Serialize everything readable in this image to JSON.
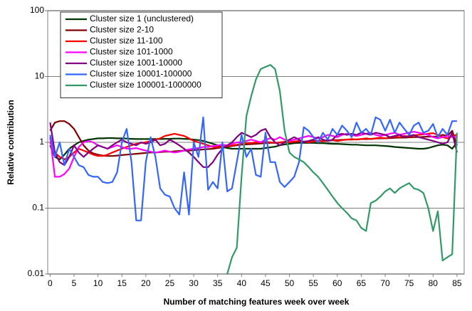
{
  "chart_data": {
    "type": "line",
    "log_y": true,
    "grid": true,
    "legend": "upper left",
    "ylabel": "Relative contribution",
    "xlabel": "Number of matching features week over week",
    "xlim": [
      -0.5,
      86.5
    ],
    "xticks": [
      0,
      5,
      10,
      15,
      20,
      25,
      30,
      35,
      40,
      45,
      50,
      55,
      60,
      65,
      70,
      75,
      80,
      85
    ],
    "ylim": [
      0.01,
      100
    ],
    "yticks": [
      0.01,
      0.1,
      1,
      10,
      100
    ],
    "x": [
      0,
      1,
      2,
      3,
      4,
      5,
      6,
      7,
      8,
      9,
      10,
      11,
      12,
      13,
      14,
      15,
      16,
      17,
      18,
      19,
      20,
      21,
      22,
      23,
      24,
      25,
      26,
      27,
      28,
      29,
      30,
      31,
      32,
      33,
      34,
      35,
      36,
      37,
      38,
      39,
      40,
      41,
      42,
      43,
      44,
      45,
      46,
      47,
      48,
      49,
      50,
      51,
      52,
      53,
      54,
      55,
      56,
      57,
      58,
      59,
      60,
      61,
      62,
      63,
      64,
      65,
      66,
      67,
      68,
      69,
      70,
      71,
      72,
      73,
      74,
      75,
      76,
      77,
      78,
      79,
      80,
      81,
      82,
      83,
      84,
      85
    ],
    "series": [
      {
        "name": "Cluster size 1 (unclustered)",
        "color": "#003300",
        "values": [
          0.9,
          0.6,
          0.55,
          0.65,
          0.8,
          0.9,
          1.0,
          1.05,
          1.1,
          1.12,
          1.15,
          1.15,
          1.16,
          1.16,
          1.15,
          1.15,
          1.14,
          1.13,
          1.12,
          1.12,
          1.12,
          1.12,
          1.12,
          1.12,
          1.13,
          1.13,
          1.14,
          1.14,
          1.13,
          1.12,
          1.1,
          1.08,
          1.05,
          1.0,
          0.95,
          0.9,
          0.85,
          0.82,
          0.8,
          0.8,
          0.8,
          0.8,
          0.8,
          0.8,
          0.8,
          0.82,
          0.84,
          0.86,
          0.9,
          0.93,
          0.95,
          0.97,
          0.98,
          0.98,
          0.98,
          0.98,
          0.97,
          0.97,
          0.96,
          0.95,
          0.95,
          0.94,
          0.93,
          0.92,
          0.92,
          0.91,
          0.9,
          0.9,
          0.9,
          0.89,
          0.88,
          0.87,
          0.85,
          0.84,
          0.83,
          0.82,
          0.81,
          0.8,
          0.8,
          0.82,
          0.86,
          0.9,
          0.92,
          0.9,
          0.8,
          1.0
        ]
      },
      {
        "name": "Cluster size 2-10",
        "color": "#800000",
        "values": [
          1.5,
          2.0,
          2.1,
          2.1,
          1.9,
          1.6,
          1.2,
          0.9,
          0.75,
          0.68,
          0.65,
          0.63,
          0.62,
          0.62,
          0.63,
          0.64,
          0.65,
          0.66,
          0.67,
          0.68,
          0.69,
          0.7,
          0.7,
          0.71,
          0.72,
          0.72,
          0.73,
          0.74,
          0.75,
          0.75,
          0.76,
          0.77,
          0.78,
          0.79,
          0.8,
          0.82,
          0.84,
          0.86,
          0.88,
          0.9,
          0.92,
          0.93,
          0.94,
          0.95,
          0.96,
          0.97,
          0.98,
          0.98,
          0.99,
          1.0,
          1.0,
          1.01,
          1.02,
          1.03,
          1.04,
          1.05,
          1.05,
          1.06,
          1.07,
          1.08,
          1.08,
          1.09,
          1.1,
          1.1,
          1.11,
          1.12,
          1.12,
          1.13,
          1.14,
          1.15,
          1.15,
          1.16,
          1.17,
          1.18,
          1.18,
          1.19,
          1.2,
          1.2,
          1.21,
          1.22,
          1.22,
          1.23,
          1.3,
          1.25,
          1.5,
          0.9
        ]
      },
      {
        "name": "Cluster size 11-100",
        "color": "#ff0000",
        "values": [
          1.0,
          0.7,
          0.6,
          0.55,
          0.6,
          0.7,
          0.8,
          0.75,
          0.7,
          0.65,
          0.62,
          0.62,
          0.65,
          0.7,
          0.75,
          0.8,
          0.85,
          0.9,
          0.95,
          0.98,
          1.0,
          1.05,
          1.1,
          1.15,
          1.25,
          1.3,
          1.35,
          1.3,
          1.25,
          1.15,
          1.05,
          1.0,
          0.95,
          0.9,
          0.85,
          0.85,
          0.85,
          0.88,
          0.9,
          0.92,
          0.95,
          0.97,
          0.98,
          1.0,
          1.0,
          1.02,
          1.0,
          0.98,
          1.0,
          1.02,
          1.0,
          1.03,
          1.05,
          1.02,
          1.0,
          1.03,
          1.05,
          1.04,
          1.06,
          1.08,
          1.05,
          1.08,
          1.1,
          1.12,
          1.1,
          1.12,
          1.15,
          1.12,
          1.15,
          1.18,
          1.15,
          1.2,
          1.22,
          1.2,
          1.25,
          1.22,
          1.28,
          1.3,
          1.32,
          1.35,
          1.38,
          1.3,
          1.2,
          1.15,
          1.25,
          1.3
        ]
      },
      {
        "name": "Cluster size 101-1000",
        "color": "#ff00ff",
        "values": [
          1.2,
          0.3,
          0.3,
          0.33,
          0.4,
          0.6,
          0.85,
          1.0,
          1.05,
          1.0,
          0.9,
          0.85,
          0.8,
          0.85,
          0.9,
          0.85,
          0.8,
          0.8,
          0.82,
          0.78,
          0.75,
          0.72,
          0.7,
          0.72,
          0.75,
          0.72,
          0.7,
          0.72,
          0.75,
          0.78,
          0.8,
          0.82,
          0.85,
          0.85,
          0.88,
          0.9,
          0.92,
          0.9,
          0.95,
          1.0,
          1.0,
          1.05,
          1.1,
          1.05,
          1.0,
          1.1,
          1.15,
          1.1,
          1.2,
          1.1,
          1.05,
          1.1,
          1.15,
          1.2,
          1.25,
          1.2,
          1.15,
          1.2,
          1.3,
          1.25,
          1.2,
          1.3,
          1.35,
          1.3,
          1.25,
          1.3,
          1.35,
          1.4,
          1.3,
          1.25,
          1.3,
          1.35,
          1.4,
          1.3,
          1.35,
          1.4,
          1.45,
          1.4,
          1.35,
          1.3,
          1.2,
          1.15,
          1.2,
          1.25,
          1.2,
          1.2
        ]
      },
      {
        "name": "Cluster size 1001-10000",
        "color": "#800080",
        "values": [
          2.0,
          0.7,
          0.5,
          0.45,
          0.6,
          0.9,
          0.7,
          0.6,
          0.7,
          0.8,
          0.9,
          0.85,
          0.8,
          0.9,
          1.0,
          1.1,
          1.0,
          0.95,
          0.9,
          1.0,
          0.95,
          1.0,
          1.1,
          0.9,
          0.95,
          1.1,
          1.0,
          0.9,
          0.8,
          0.7,
          0.6,
          0.5,
          0.42,
          0.42,
          0.5,
          0.65,
          0.8,
          0.9,
          1.0,
          1.2,
          1.4,
          1.3,
          1.2,
          1.3,
          1.5,
          1.6,
          1.2,
          1.0,
          0.9,
          1.0,
          1.1,
          1.2,
          1.1,
          1.0,
          1.05,
          1.1,
          1.2,
          1.1,
          1.05,
          1.1,
          1.3,
          1.35,
          1.3,
          1.35,
          1.3,
          1.4,
          1.35,
          1.3,
          1.4,
          1.35,
          1.3,
          1.2,
          1.25,
          1.3,
          1.2,
          1.25,
          1.3,
          1.2,
          1.15,
          1.1,
          1.05,
          1.0,
          0.95,
          1.0,
          1.4,
          0.7
        ]
      },
      {
        "name": "Cluster size 10001-100000",
        "color": "#3366ff",
        "values": [
          1.3,
          0.6,
          1.0,
          0.45,
          0.8,
          0.6,
          0.45,
          0.42,
          0.32,
          0.3,
          0.3,
          0.25,
          0.24,
          0.25,
          0.35,
          1.0,
          1.6,
          0.5,
          0.065,
          0.065,
          0.5,
          1.2,
          0.6,
          0.2,
          0.16,
          0.15,
          0.1,
          0.08,
          0.35,
          0.08,
          1.0,
          0.6,
          2.4,
          0.19,
          0.25,
          0.2,
          1.0,
          0.18,
          0.2,
          0.5,
          1.3,
          0.6,
          0.8,
          0.32,
          0.3,
          1.4,
          0.5,
          0.5,
          0.25,
          0.21,
          0.25,
          0.3,
          0.5,
          1.7,
          1.5,
          1.2,
          1.0,
          1.4,
          1.1,
          1.6,
          1.3,
          1.8,
          1.5,
          1.2,
          2.0,
          1.4,
          1.6,
          1.3,
          2.4,
          2.2,
          1.5,
          2.2,
          1.4,
          2.0,
          1.6,
          1.3,
          1.8,
          2.0,
          1.4,
          1.5,
          1.9,
          1.2,
          1.6,
          1.3,
          2.1,
          2.1
        ]
      },
      {
        "name": "Cluster size 100001-1000000",
        "color": "#339966",
        "values": [
          null,
          null,
          null,
          null,
          null,
          null,
          null,
          null,
          null,
          null,
          null,
          null,
          null,
          null,
          null,
          null,
          null,
          null,
          null,
          null,
          null,
          null,
          null,
          null,
          null,
          null,
          null,
          null,
          null,
          null,
          null,
          null,
          null,
          null,
          null,
          null,
          null,
          0.01,
          0.018,
          0.025,
          0.3,
          2.5,
          5,
          9,
          13,
          14,
          15,
          13,
          6,
          1.5,
          0.7,
          0.6,
          0.55,
          0.5,
          0.42,
          0.35,
          0.3,
          0.24,
          0.19,
          0.15,
          0.12,
          0.1,
          0.085,
          0.07,
          0.065,
          0.05,
          0.045,
          0.12,
          0.13,
          0.15,
          0.18,
          0.2,
          0.17,
          0.2,
          0.22,
          0.24,
          0.2,
          0.19,
          0.17,
          0.1,
          0.045,
          0.09,
          0.016,
          0.018,
          0.02,
          1.4
        ]
      }
    ]
  }
}
